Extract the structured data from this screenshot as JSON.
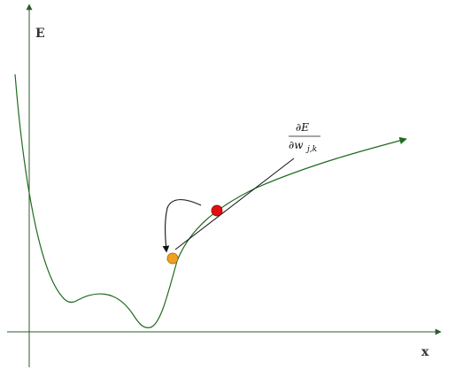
{
  "diagram": {
    "y_axis_label": "E",
    "x_axis_label": "x",
    "gradient_label": {
      "numerator": "∂E",
      "denominator_main": "∂w",
      "denominator_sub": "j,k"
    },
    "colors": {
      "axis": "#2f5a2f",
      "curve": "#1f6b1f",
      "tangent": "#111111",
      "current_point": "#e01010",
      "next_point": "#f0a020",
      "step_arrow": "#111111"
    }
  }
}
